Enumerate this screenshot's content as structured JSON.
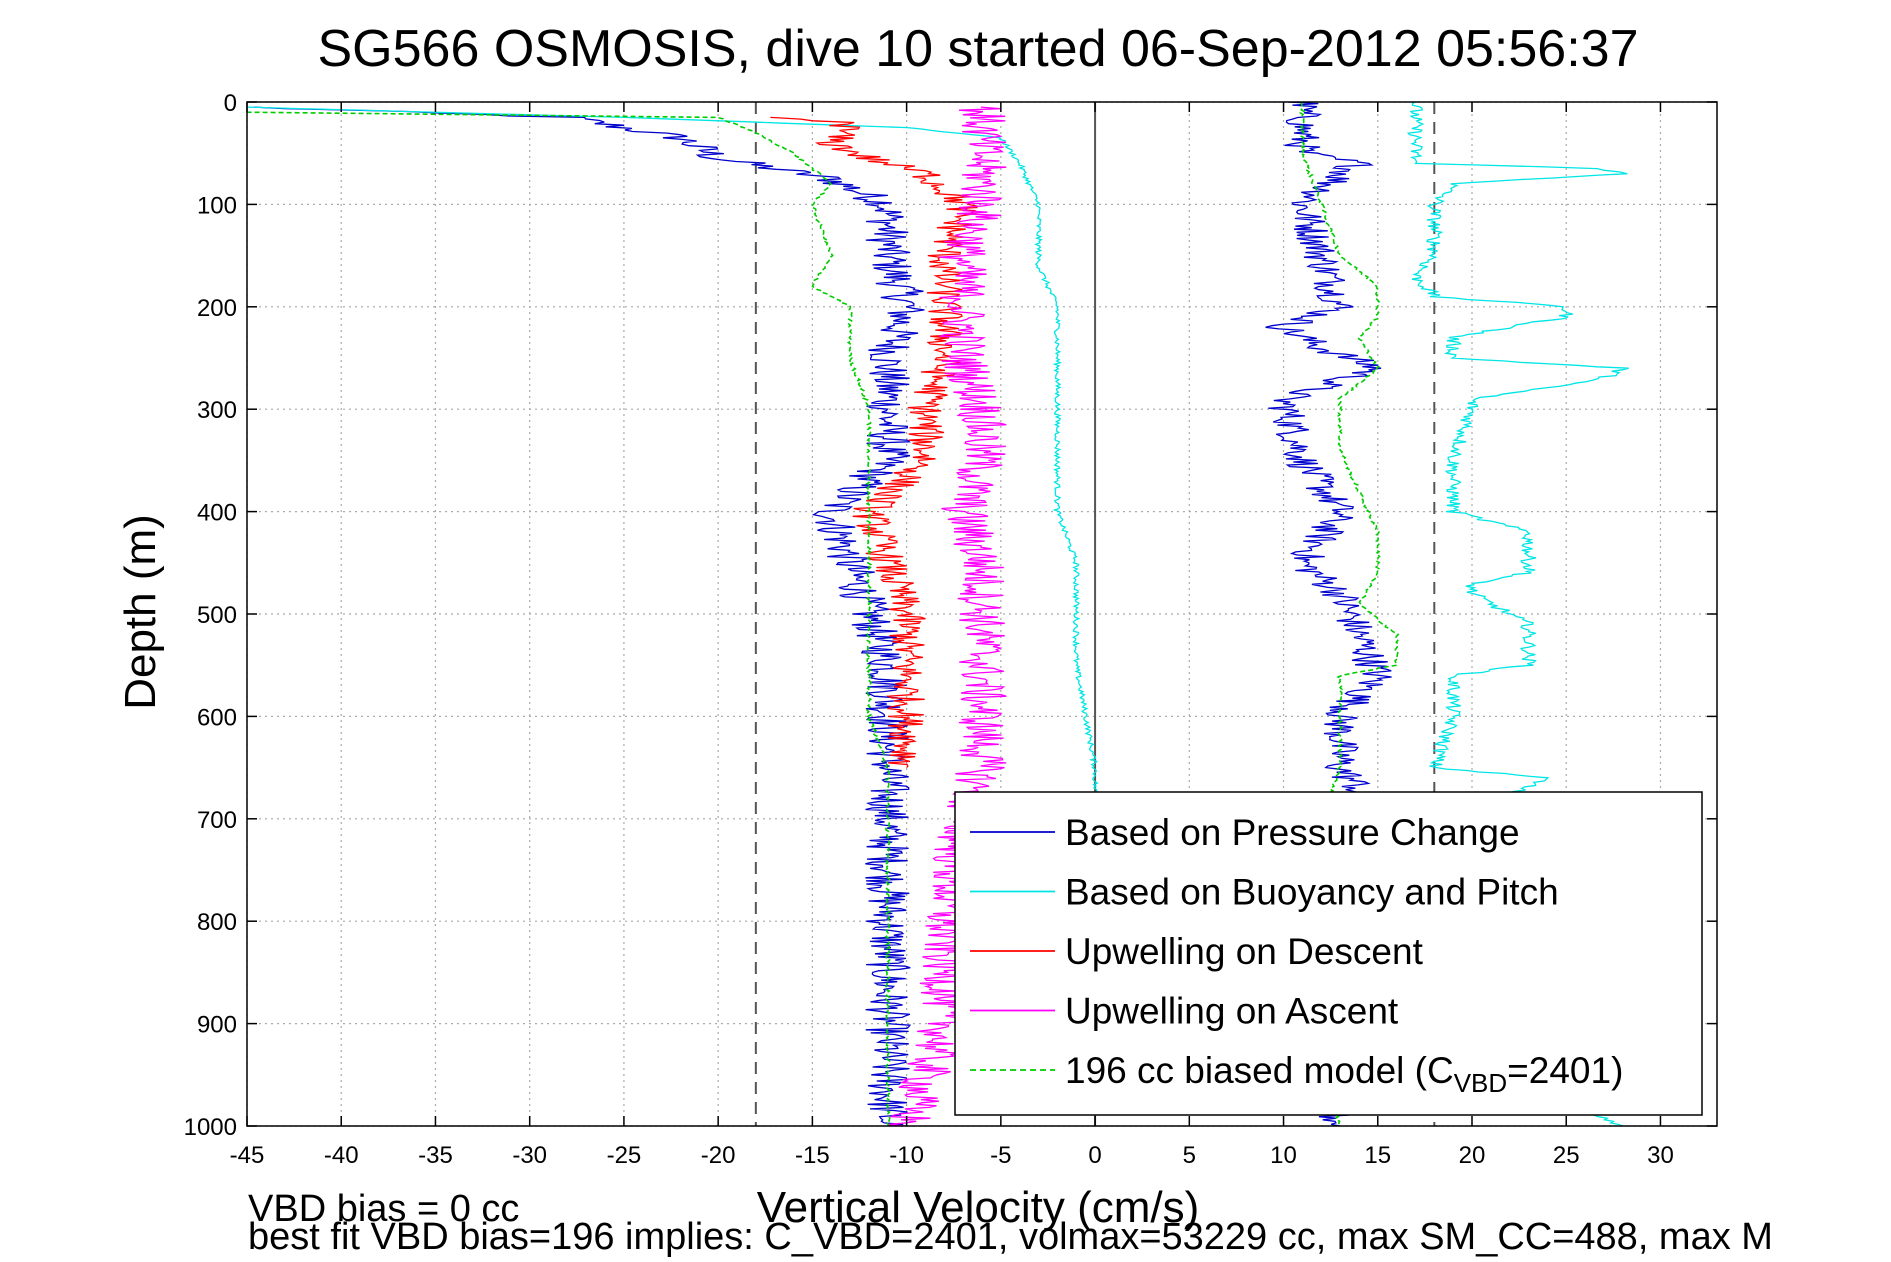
{
  "chart_data": {
    "type": "line",
    "title": "SG566 OSMOSIS, dive 10 started 06-Sep-2012 05:56:37",
    "xlabel": "Vertical Velocity (cm/s)",
    "ylabel": "Depth (m)",
    "xlim": [
      -45,
      33
    ],
    "ylim": [
      0,
      1000
    ],
    "y_reversed": true,
    "grid": true,
    "x_ticks": [
      -45,
      -40,
      -35,
      -30,
      -25,
      -20,
      -15,
      -10,
      -5,
      0,
      5,
      10,
      15,
      20,
      25,
      30
    ],
    "y_ticks": [
      0,
      100,
      200,
      300,
      400,
      500,
      600,
      700,
      800,
      900,
      1000
    ],
    "x_tick_labels": [
      "-45",
      "-40",
      "-35",
      "-30",
      "-25",
      "-20",
      "-15",
      "-10",
      "-5",
      "0",
      "5",
      "10",
      "15",
      "20",
      "25",
      "30"
    ],
    "y_tick_labels": [
      "0",
      "100",
      "200",
      "300",
      "400",
      "500",
      "600",
      "700",
      "800",
      "900",
      "1000"
    ],
    "reference_lines": [
      {
        "x": -18,
        "style": "dashed",
        "color": "#555555"
      },
      {
        "x": 0,
        "style": "solid",
        "color": "#555555"
      },
      {
        "x": 18,
        "style": "dashed",
        "color": "#555555"
      }
    ],
    "legend_position": "bottom-right",
    "legend": [
      {
        "label": "Based on Pressure Change",
        "color": "#0000cc",
        "style": "solid"
      },
      {
        "label": "Based on Buoyancy and Pitch",
        "color": "#00e5e5",
        "style": "solid"
      },
      {
        "label": "Upwelling on Descent",
        "color": "#ff0000",
        "style": "solid"
      },
      {
        "label": "Upwelling on Ascent",
        "color": "#ff00ff",
        "style": "solid"
      },
      {
        "label_prefix": "196 cc biased model (C",
        "label_subscript": "VBD",
        "label_suffix": "=2401)",
        "color": "#00cc00",
        "style": "dashed"
      }
    ],
    "series": [
      {
        "name": "Based on Pressure Change",
        "color": "#0000cc",
        "phase": "descent",
        "noise": 1.2,
        "points": [
          [
            -45,
            5
          ],
          [
            -28,
            15
          ],
          [
            -22,
            35
          ],
          [
            -20,
            55
          ],
          [
            -14,
            75
          ],
          [
            -11,
            100
          ],
          [
            -11,
            150
          ],
          [
            -10,
            200
          ],
          [
            -11,
            250
          ],
          [
            -11,
            300
          ],
          [
            -11,
            350
          ],
          [
            -14,
            400
          ],
          [
            -13,
            450
          ],
          [
            -12,
            500
          ],
          [
            -11,
            550
          ],
          [
            -11,
            600
          ],
          [
            -11,
            650
          ],
          [
            -11,
            700
          ],
          [
            -11,
            750
          ],
          [
            -11,
            800
          ],
          [
            -11,
            850
          ],
          [
            -11,
            900
          ],
          [
            -11,
            950
          ],
          [
            -11,
            1000
          ]
        ]
      },
      {
        "name": "Based on Pressure Change",
        "color": "#0000cc",
        "phase": "ascent",
        "noise": 1.0,
        "points": [
          [
            11,
            0
          ],
          [
            11,
            50
          ],
          [
            14,
            60
          ],
          [
            11,
            100
          ],
          [
            12,
            150
          ],
          [
            13,
            200
          ],
          [
            10,
            220
          ],
          [
            12,
            240
          ],
          [
            15,
            260
          ],
          [
            10,
            290
          ],
          [
            11,
            350
          ],
          [
            13,
            400
          ],
          [
            11,
            450
          ],
          [
            13,
            480
          ],
          [
            14,
            520
          ],
          [
            15,
            560
          ],
          [
            13,
            600
          ],
          [
            13,
            650
          ],
          [
            14,
            670
          ],
          [
            12,
            700
          ],
          [
            12,
            800
          ],
          [
            12,
            900
          ],
          [
            11,
            950
          ],
          [
            13,
            1000
          ]
        ]
      },
      {
        "name": "Based on Buoyancy and Pitch",
        "color": "#00e5e5",
        "phase": "descent",
        "noise": 0.15,
        "points": [
          [
            -45,
            5
          ],
          [
            -25,
            15
          ],
          [
            -10,
            25
          ],
          [
            -5,
            35
          ],
          [
            -4,
            60
          ],
          [
            -3,
            100
          ],
          [
            -3,
            160
          ],
          [
            -2,
            200
          ],
          [
            -2,
            250
          ],
          [
            -2,
            300
          ],
          [
            -2,
            350
          ],
          [
            -2,
            400
          ],
          [
            -1,
            450
          ],
          [
            -1,
            500
          ],
          [
            -1,
            550
          ],
          [
            -0.5,
            600
          ],
          [
            0,
            650
          ],
          [
            0,
            700
          ]
        ]
      },
      {
        "name": "Based on Buoyancy and Pitch",
        "color": "#00e5e5",
        "phase": "ascent",
        "noise": 0.4,
        "points": [
          [
            17,
            0
          ],
          [
            17,
            20
          ],
          [
            17,
            60
          ],
          [
            27,
            65
          ],
          [
            28,
            70
          ],
          [
            19,
            80
          ],
          [
            18,
            100
          ],
          [
            18,
            150
          ],
          [
            17,
            170
          ],
          [
            18,
            190
          ],
          [
            25,
            200
          ],
          [
            25,
            210
          ],
          [
            19,
            230
          ],
          [
            19,
            250
          ],
          [
            28,
            260
          ],
          [
            27,
            270
          ],
          [
            20,
            290
          ],
          [
            20,
            300
          ],
          [
            19,
            350
          ],
          [
            19,
            400
          ],
          [
            23,
            420
          ],
          [
            23,
            460
          ],
          [
            20,
            470
          ],
          [
            20,
            480
          ],
          [
            23,
            510
          ],
          [
            23,
            550
          ],
          [
            19,
            560
          ],
          [
            19,
            600
          ],
          [
            18,
            650
          ],
          [
            24,
            660
          ],
          [
            19,
            700
          ],
          [
            20,
            800
          ],
          [
            20,
            900
          ],
          [
            20,
            950
          ],
          [
            28,
            1000
          ]
        ]
      },
      {
        "name": "Upwelling on Descent",
        "color": "#ff0000",
        "phase": "descent",
        "noise": 1.0,
        "points": [
          [
            -18,
            15
          ],
          [
            -13,
            20
          ],
          [
            -14,
            40
          ],
          [
            -12,
            55
          ],
          [
            -9,
            70
          ],
          [
            -7,
            100
          ],
          [
            -8,
            150
          ],
          [
            -8,
            200
          ],
          [
            -8,
            250
          ],
          [
            -9,
            300
          ],
          [
            -9,
            350
          ],
          [
            -12,
            400
          ],
          [
            -11,
            450
          ],
          [
            -10,
            500
          ],
          [
            -10,
            550
          ],
          [
            -10,
            600
          ],
          [
            -10,
            650
          ]
        ]
      },
      {
        "name": "Upwelling on Ascent",
        "color": "#ff00ff",
        "phase": "ascent",
        "noise": 1.3,
        "points": [
          [
            -6,
            5
          ],
          [
            -6,
            50
          ],
          [
            -6,
            100
          ],
          [
            -7,
            150
          ],
          [
            -7,
            200
          ],
          [
            -7,
            250
          ],
          [
            -6,
            300
          ],
          [
            -6,
            350
          ],
          [
            -7,
            400
          ],
          [
            -6,
            450
          ],
          [
            -6,
            500
          ],
          [
            -6,
            550
          ],
          [
            -6,
            600
          ],
          [
            -6,
            650
          ],
          [
            -7,
            700
          ],
          [
            -8,
            800
          ],
          [
            -8,
            850
          ],
          [
            -8,
            900
          ],
          [
            -9,
            950
          ],
          [
            -10,
            1000
          ]
        ]
      },
      {
        "name": "196 cc biased model (C_VBD=2401)",
        "color": "#00cc00",
        "phase": "descent",
        "noise": 0.1,
        "dashed": true,
        "points": [
          [
            -45,
            10
          ],
          [
            -20,
            15
          ],
          [
            -18,
            30
          ],
          [
            -16,
            50
          ],
          [
            -14,
            80
          ],
          [
            -15,
            100
          ],
          [
            -14,
            150
          ],
          [
            -15,
            180
          ],
          [
            -13,
            200
          ],
          [
            -13,
            250
          ],
          [
            -12,
            300
          ],
          [
            -12,
            350
          ],
          [
            -12,
            400
          ],
          [
            -12,
            450
          ],
          [
            -12,
            500
          ],
          [
            -12,
            550
          ],
          [
            -12,
            600
          ],
          [
            -11,
            650
          ],
          [
            -11,
            700
          ],
          [
            -11,
            750
          ],
          [
            -11,
            800
          ],
          [
            -11,
            850
          ],
          [
            -11,
            900
          ],
          [
            -11,
            950
          ],
          [
            -11,
            1000
          ]
        ]
      },
      {
        "name": "196 cc biased model (C_VBD=2401)",
        "color": "#00cc00",
        "phase": "ascent",
        "noise": 0.1,
        "dashed": true,
        "points": [
          [
            11,
            0
          ],
          [
            11,
            50
          ],
          [
            12,
            100
          ],
          [
            13,
            150
          ],
          [
            15,
            180
          ],
          [
            15,
            210
          ],
          [
            14,
            230
          ],
          [
            15,
            260
          ],
          [
            13,
            290
          ],
          [
            13,
            340
          ],
          [
            14,
            380
          ],
          [
            15,
            420
          ],
          [
            15,
            460
          ],
          [
            14,
            490
          ],
          [
            16,
            520
          ],
          [
            16,
            550
          ],
          [
            13,
            560
          ],
          [
            13,
            650
          ],
          [
            12,
            700
          ],
          [
            13,
            750
          ],
          [
            12,
            800
          ],
          [
            12,
            900
          ],
          [
            12,
            950
          ],
          [
            13,
            1000
          ]
        ]
      }
    ]
  },
  "footnotes": {
    "line1": "VBD bias = 0 cc",
    "line2": "best fit VBD bias=196 implies: C_VBD=2401, volmax=53229 cc, max SM_CC=488, max M"
  }
}
